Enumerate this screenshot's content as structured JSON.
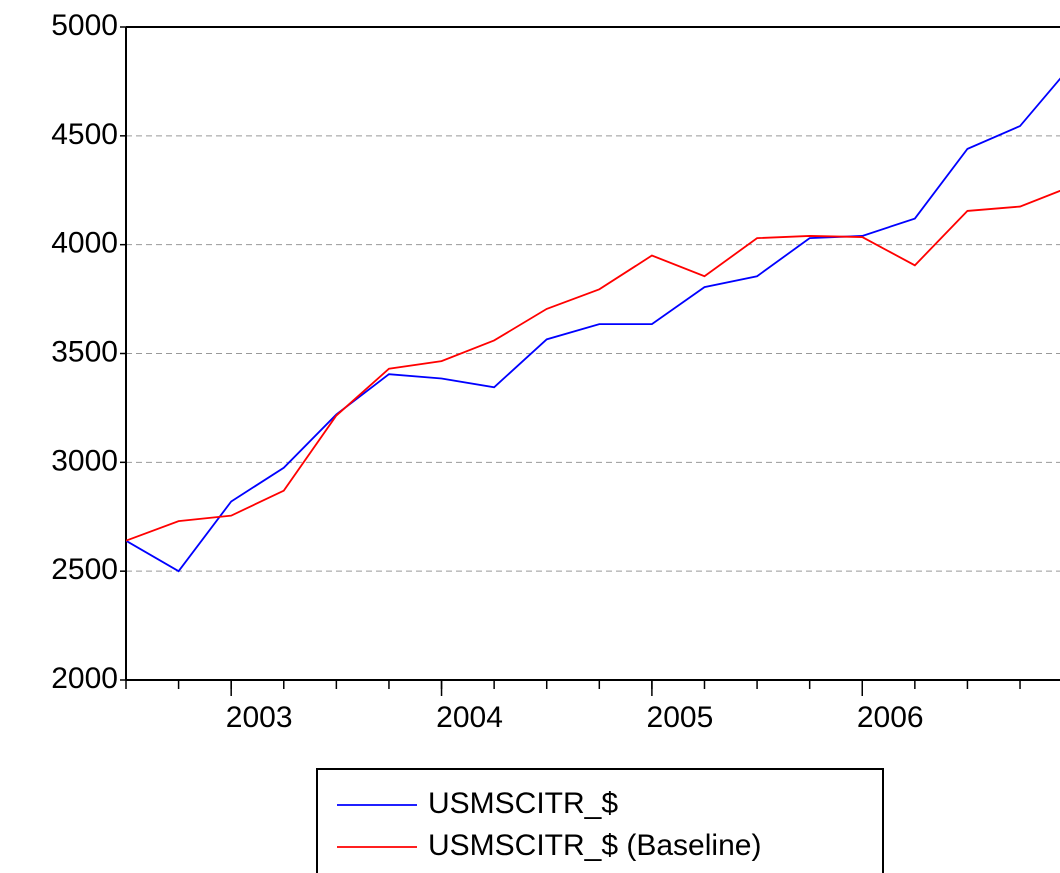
{
  "chart_data": {
    "type": "line",
    "x": [
      2002.5,
      2002.75,
      2003.0,
      2003.25,
      2003.5,
      2003.75,
      2004.0,
      2004.25,
      2004.5,
      2004.75,
      2005.0,
      2005.25,
      2005.5,
      2005.75,
      2006.0,
      2006.25,
      2006.5,
      2006.75,
      2007.0
    ],
    "series": [
      {
        "name": "USMSCITR_$",
        "color": "#0000ff",
        "values": [
          2640,
          2500,
          2820,
          2975,
          3220,
          3405,
          3385,
          3345,
          3565,
          3635,
          3635,
          3805,
          3855,
          4030,
          4040,
          4120,
          4440,
          4545,
          4830
        ]
      },
      {
        "name": "USMSCITR_$ (Baseline)",
        "color": "#ff0000",
        "values": [
          2640,
          2730,
          2755,
          2870,
          3215,
          3430,
          3465,
          3560,
          3705,
          3795,
          3950,
          3855,
          4030,
          4040,
          4035,
          3905,
          4155,
          4175,
          4270
        ]
      }
    ],
    "xlim": [
      2002.5,
      2006.94
    ],
    "xticks": [
      2003,
      2004,
      2005,
      2006
    ],
    "ylim": [
      2000,
      5000
    ],
    "yticks": [
      2000,
      2500,
      3000,
      3500,
      4000,
      4500,
      5000
    ],
    "grid": true,
    "legend": "bottom"
  }
}
